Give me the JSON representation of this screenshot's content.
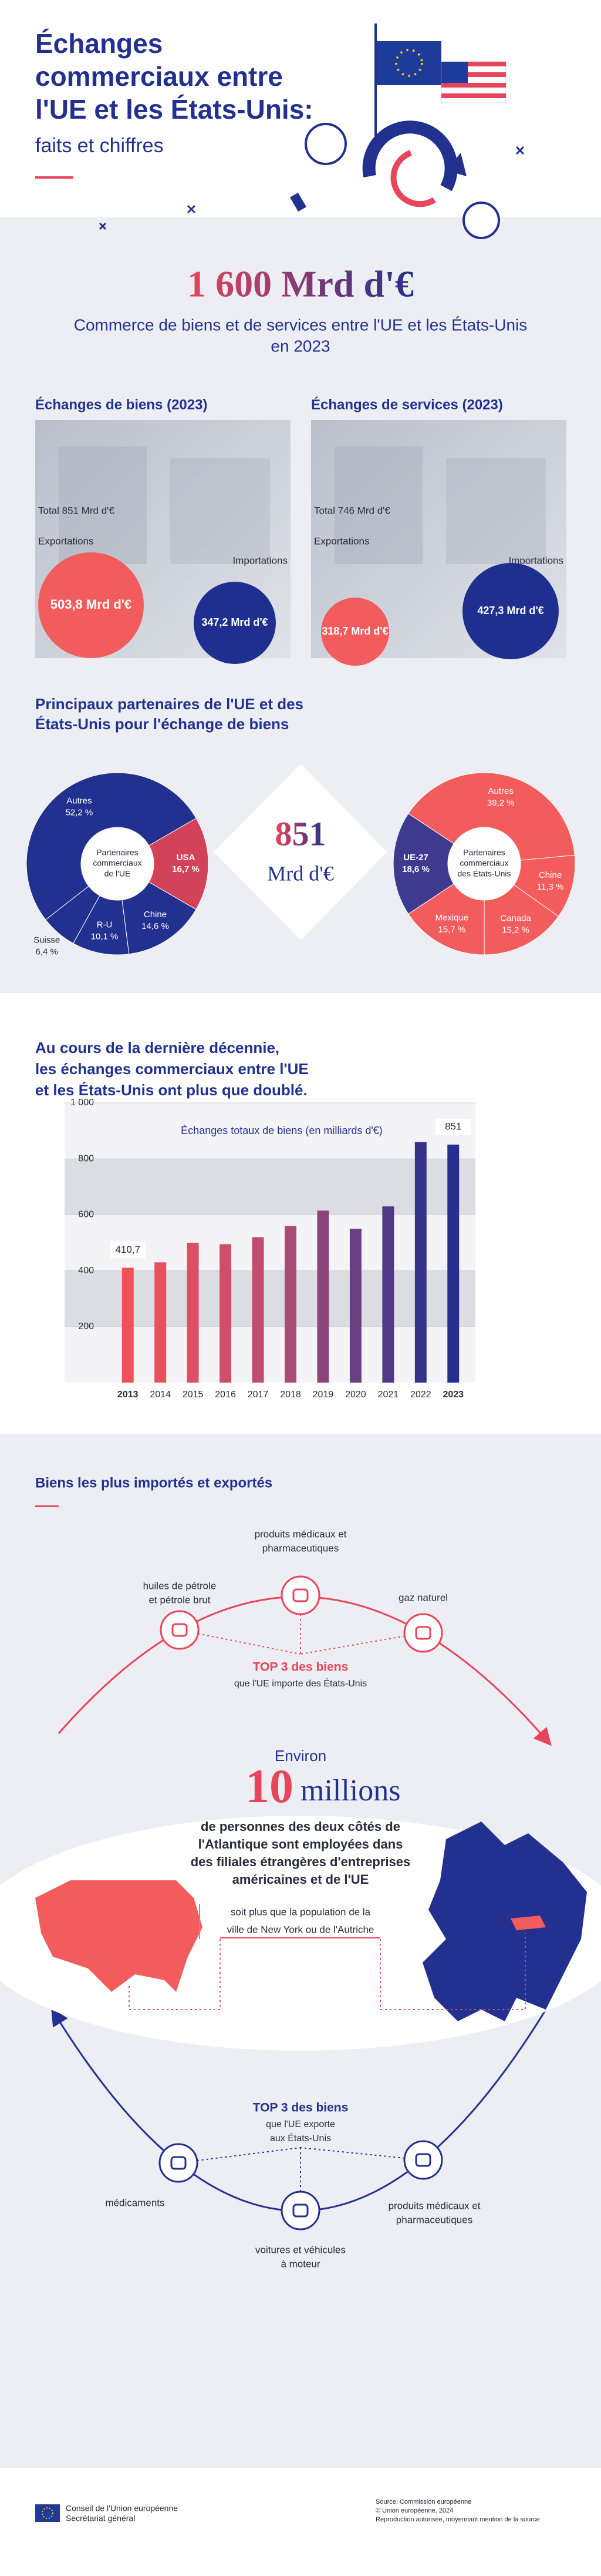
{
  "header": {
    "title_lines": [
      "Échanges",
      "commerciaux entre",
      "l'UE et les États-Unis:"
    ],
    "subtitle": "faits et chiffres"
  },
  "headline": {
    "value": "1 600 Mrd d'€",
    "caption_lines": [
      "Commerce de biens et de services entre l'UE et les États-Unis",
      "en 2023"
    ]
  },
  "trade": [
    {
      "title": "Échanges de biens (2023)",
      "total": "Total 851 Mrd d'€",
      "exports_label": "Exportations",
      "exports": "503,8 Mrd d'€",
      "imports_label": "Importations",
      "imports": "347,2 Mrd d'€"
    },
    {
      "title": "Échanges de services (2023)",
      "total": "Total 746 Mrd d'€",
      "exports_label": "Exportations",
      "exports": "318,7 Mrd d'€",
      "imports_label": "Importations",
      "imports": "427,3 Mrd d'€"
    }
  ],
  "partners": {
    "title_lines": [
      "Principaux partenaires de l'UE et des",
      "États-Unis pour l'échange de biens"
    ],
    "center_value": "851",
    "center_unit": "Mrd d'€"
  },
  "decade": {
    "title_lines": [
      "Au cours de la dernière décennie,",
      "les échanges commerciaux entre l'UE",
      "et les États-Unis ont plus que doublé."
    ]
  },
  "chart_data": [
    {
      "type": "pie",
      "center_lines": [
        "Partenaires",
        "commerciaux",
        "de l'UE"
      ],
      "categories": [
        "USA",
        "Chine",
        "R-U",
        "Suisse",
        "Autres"
      ],
      "values": [
        16.7,
        14.6,
        10.1,
        6.4,
        52.2
      ],
      "value_labels": [
        "16,7 %",
        "14,6 %",
        "10,1 %",
        "6,4 %",
        "52,2 %"
      ],
      "colors": [
        "#d2435a",
        "#22318f",
        "#22318f",
        "#22318f",
        "#22318f"
      ]
    },
    {
      "type": "pie",
      "center_lines": [
        "Partenaires",
        "commerciaux",
        "des États-Unis"
      ],
      "categories": [
        "UE-27",
        "Autres",
        "Chine",
        "Canada",
        "Mexique"
      ],
      "values": [
        18.6,
        39.2,
        11.3,
        15.2,
        15.7
      ],
      "value_labels": [
        "18,6 %",
        "39,2 %",
        "11,3 %",
        "15,2 %",
        "15,7 %"
      ],
      "colors": [
        "#3d3a90",
        "#f25c5c",
        "#f25c5c",
        "#f25c5c",
        "#f25c5c"
      ]
    },
    {
      "type": "bar",
      "title": "Échanges totaux de biens (en milliards d'€)",
      "categories": [
        "2013",
        "2014",
        "2015",
        "2016",
        "2017",
        "2018",
        "2019",
        "2020",
        "2021",
        "2022",
        "2023"
      ],
      "values": [
        410.7,
        430,
        500,
        495,
        520,
        560,
        615,
        550,
        630,
        860,
        851
      ],
      "value_labels": [
        "410,7",
        null,
        null,
        null,
        null,
        null,
        null,
        null,
        null,
        null,
        "851"
      ],
      "colors": [
        "#f0505a",
        "#e8505e",
        "#dd4f63",
        "#d04e69",
        "#c04d6f",
        "#a84b75",
        "#8a457c",
        "#6c3f82",
        "#4f3886",
        "#36338a",
        "#26308c"
      ],
      "ylim": [
        0,
        1000
      ],
      "yticks": [
        200,
        400,
        600,
        800,
        {
          "value": 1000,
          "label": "1 000"
        }
      ]
    }
  ],
  "goods": {
    "title": "Biens les plus importés et exportés",
    "imports": {
      "items": [
        [
          "huiles de pétrole",
          "et pétrole brut"
        ],
        [
          "produits médicaux et",
          "pharmaceutiques"
        ],
        [
          "gaz naturel"
        ]
      ],
      "caption_title": "TOP 3 des biens",
      "caption_lines": [
        "que l'UE importe des États-Unis"
      ]
    },
    "jobs": {
      "intro": "Environ",
      "number": "10",
      "unit": "millions",
      "text_lines": [
        "de personnes des deux côtés de",
        "l'Atlantique sont employées dans",
        "des filiales étrangères d'entreprises",
        "américaines et de l'UE"
      ],
      "comparison_lines": [
        "soit plus que la population de la",
        "ville de New York ou de l'Autriche"
      ]
    },
    "exports": {
      "items": [
        [
          "produits médicaux et",
          "pharmaceutiques"
        ],
        [
          "voitures et véhicules",
          "à moteur"
        ],
        [
          "médicaments"
        ]
      ],
      "caption_title": "TOP 3 des biens",
      "caption_lines": [
        "que l'UE exporte",
        "aux États-Unis"
      ]
    }
  },
  "footer": {
    "org_lines": [
      "Conseil de l'Union européenne",
      "Secrétariat général"
    ],
    "source_lines": [
      "Source: Commission européenne",
      "© Union européenne, 2024",
      "Reproduction autorisée, moyennant mention de la source"
    ]
  }
}
